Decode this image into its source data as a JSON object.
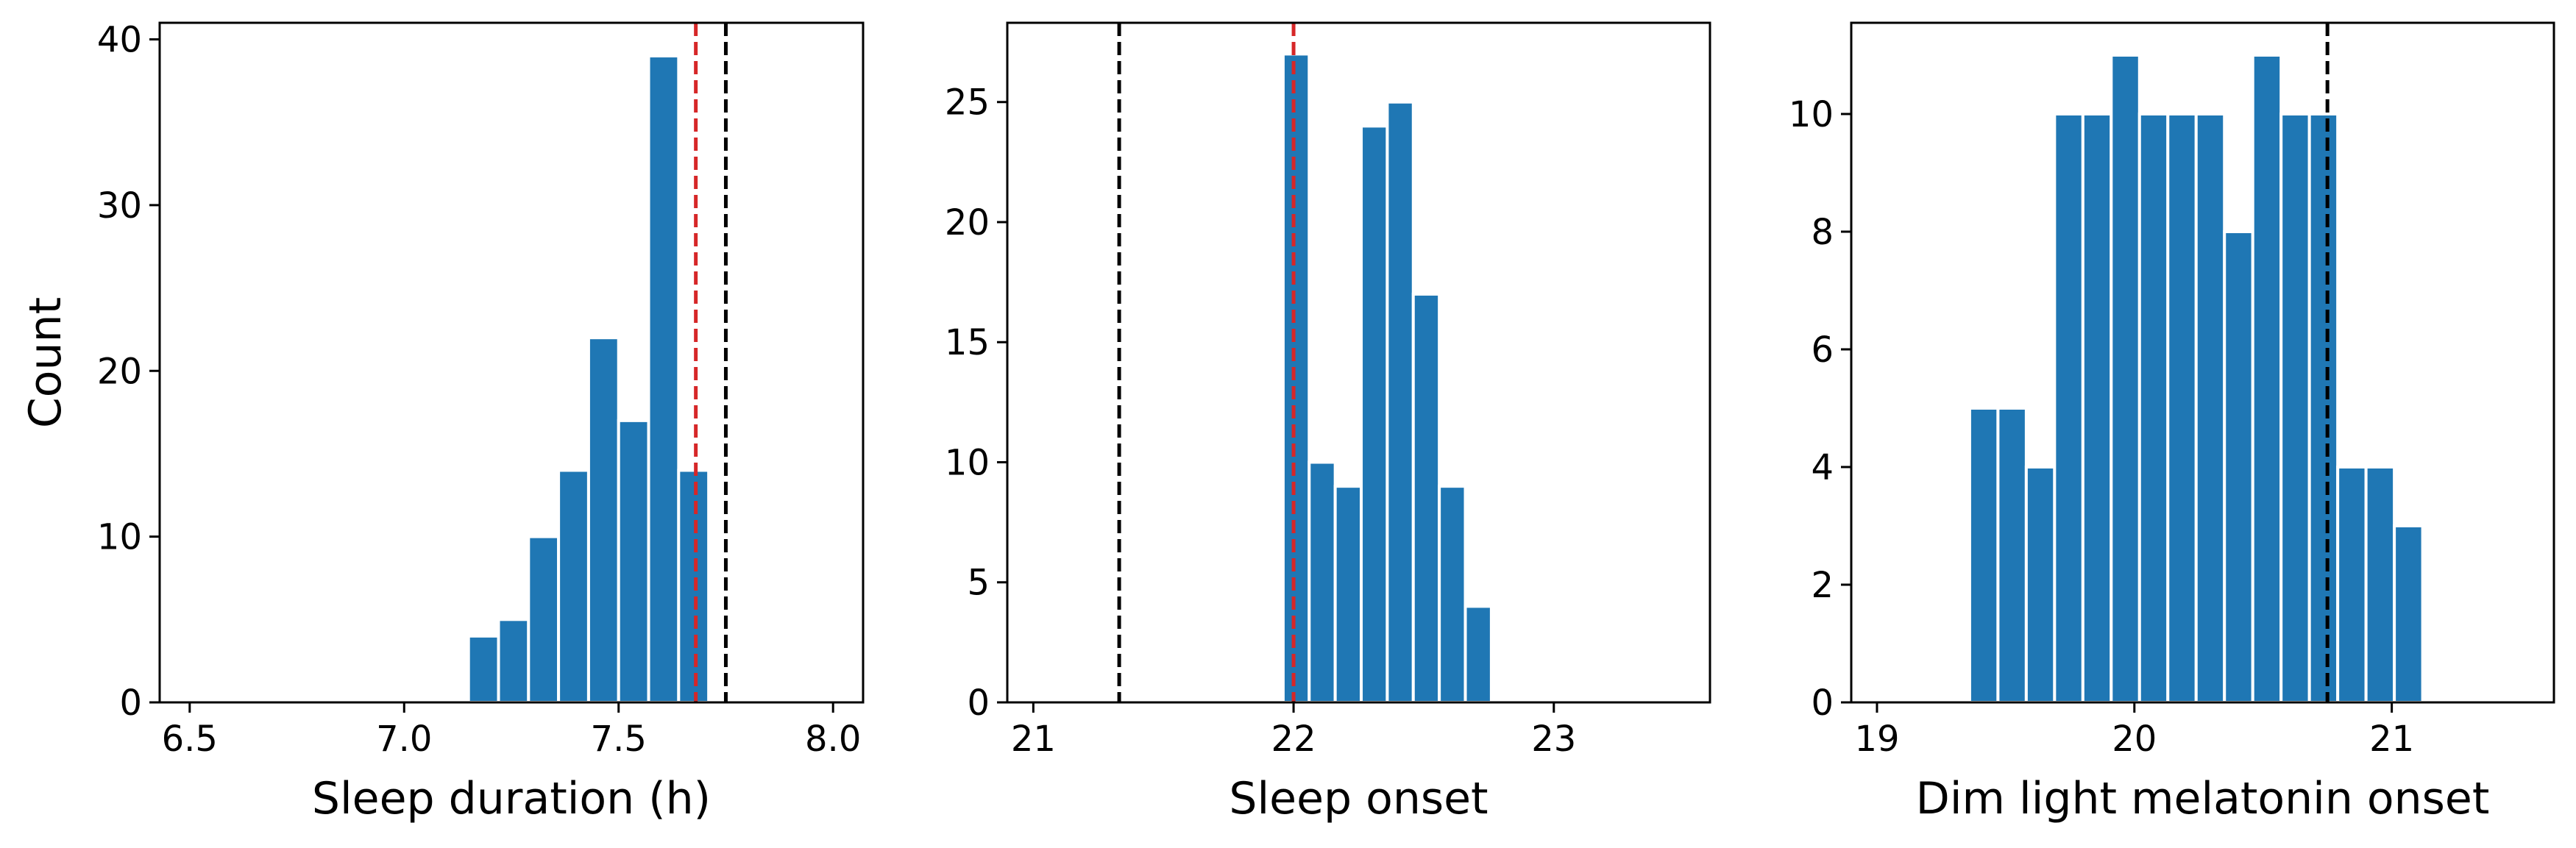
{
  "chart_data": [
    {
      "type": "bar",
      "xlabel": "Sleep duration (h)",
      "ylabel": "Count",
      "xlim": [
        6.43,
        8.07
      ],
      "ylim": [
        0,
        41
      ],
      "xticks": [
        "6.5",
        "7.0",
        "7.5",
        "8.0"
      ],
      "yticks": [
        "0",
        "10",
        "20",
        "30",
        "40"
      ],
      "bar_color": "#1f77b4",
      "bins": [
        {
          "x0": 7.15,
          "x1": 7.22,
          "count": 4
        },
        {
          "x0": 7.22,
          "x1": 7.29,
          "count": 5
        },
        {
          "x0": 7.29,
          "x1": 7.36,
          "count": 10
        },
        {
          "x0": 7.36,
          "x1": 7.43,
          "count": 14
        },
        {
          "x0": 7.43,
          "x1": 7.5,
          "count": 22
        },
        {
          "x0": 7.5,
          "x1": 7.57,
          "count": 17
        },
        {
          "x0": 7.57,
          "x1": 7.64,
          "count": 39
        },
        {
          "x0": 7.64,
          "x1": 7.71,
          "count": 14
        }
      ],
      "reference_lines": [
        {
          "x": 7.68,
          "color": "#d62728",
          "style": "dashed"
        },
        {
          "x": 7.75,
          "color": "#000000",
          "style": "dashed"
        }
      ]
    },
    {
      "type": "bar",
      "xlabel": "Sleep onset",
      "ylabel": "",
      "xlim": [
        20.9,
        23.6
      ],
      "ylim": [
        0,
        28.3
      ],
      "xticks": [
        "21",
        "22",
        "23"
      ],
      "yticks": [
        "0",
        "5",
        "10",
        "15",
        "20",
        "25"
      ],
      "bar_color": "#1f77b4",
      "bins": [
        {
          "x0": 21.96,
          "x1": 22.06,
          "count": 27
        },
        {
          "x0": 22.06,
          "x1": 22.16,
          "count": 10
        },
        {
          "x0": 22.16,
          "x1": 22.26,
          "count": 9
        },
        {
          "x0": 22.26,
          "x1": 22.36,
          "count": 24
        },
        {
          "x0": 22.36,
          "x1": 22.46,
          "count": 25
        },
        {
          "x0": 22.46,
          "x1": 22.56,
          "count": 17
        },
        {
          "x0": 22.56,
          "x1": 22.66,
          "count": 9
        },
        {
          "x0": 22.66,
          "x1": 22.76,
          "count": 4
        }
      ],
      "reference_lines": [
        {
          "x": 21.33,
          "color": "#000000",
          "style": "dashed"
        },
        {
          "x": 22.0,
          "color": "#d62728",
          "style": "dashed"
        }
      ]
    },
    {
      "type": "bar",
      "xlabel": "Dim light melatonin onset",
      "ylabel": "",
      "xlim": [
        18.9,
        21.63
      ],
      "ylim": [
        0,
        11.55
      ],
      "xticks": [
        "19",
        "20",
        "21"
      ],
      "yticks": [
        "0",
        "2",
        "4",
        "6",
        "8",
        "10"
      ],
      "bar_color": "#1f77b4",
      "bins": [
        {
          "x0": 19.36,
          "x1": 19.47,
          "count": 5
        },
        {
          "x0": 19.47,
          "x1": 19.58,
          "count": 5
        },
        {
          "x0": 19.58,
          "x1": 19.69,
          "count": 4
        },
        {
          "x0": 19.69,
          "x1": 19.8,
          "count": 10
        },
        {
          "x0": 19.8,
          "x1": 19.91,
          "count": 10
        },
        {
          "x0": 19.91,
          "x1": 20.02,
          "count": 11
        },
        {
          "x0": 20.02,
          "x1": 20.13,
          "count": 10
        },
        {
          "x0": 20.13,
          "x1": 20.24,
          "count": 10
        },
        {
          "x0": 20.24,
          "x1": 20.35,
          "count": 10
        },
        {
          "x0": 20.35,
          "x1": 20.46,
          "count": 8
        },
        {
          "x0": 20.46,
          "x1": 20.57,
          "count": 11
        },
        {
          "x0": 20.57,
          "x1": 20.68,
          "count": 10
        },
        {
          "x0": 20.68,
          "x1": 20.79,
          "count": 10
        },
        {
          "x0": 20.79,
          "x1": 20.9,
          "count": 4
        },
        {
          "x0": 20.9,
          "x1": 21.01,
          "count": 4
        },
        {
          "x0": 21.01,
          "x1": 21.12,
          "count": 3
        }
      ],
      "reference_lines": [
        {
          "x": 20.75,
          "color": "#000000",
          "style": "dashed"
        }
      ]
    }
  ]
}
